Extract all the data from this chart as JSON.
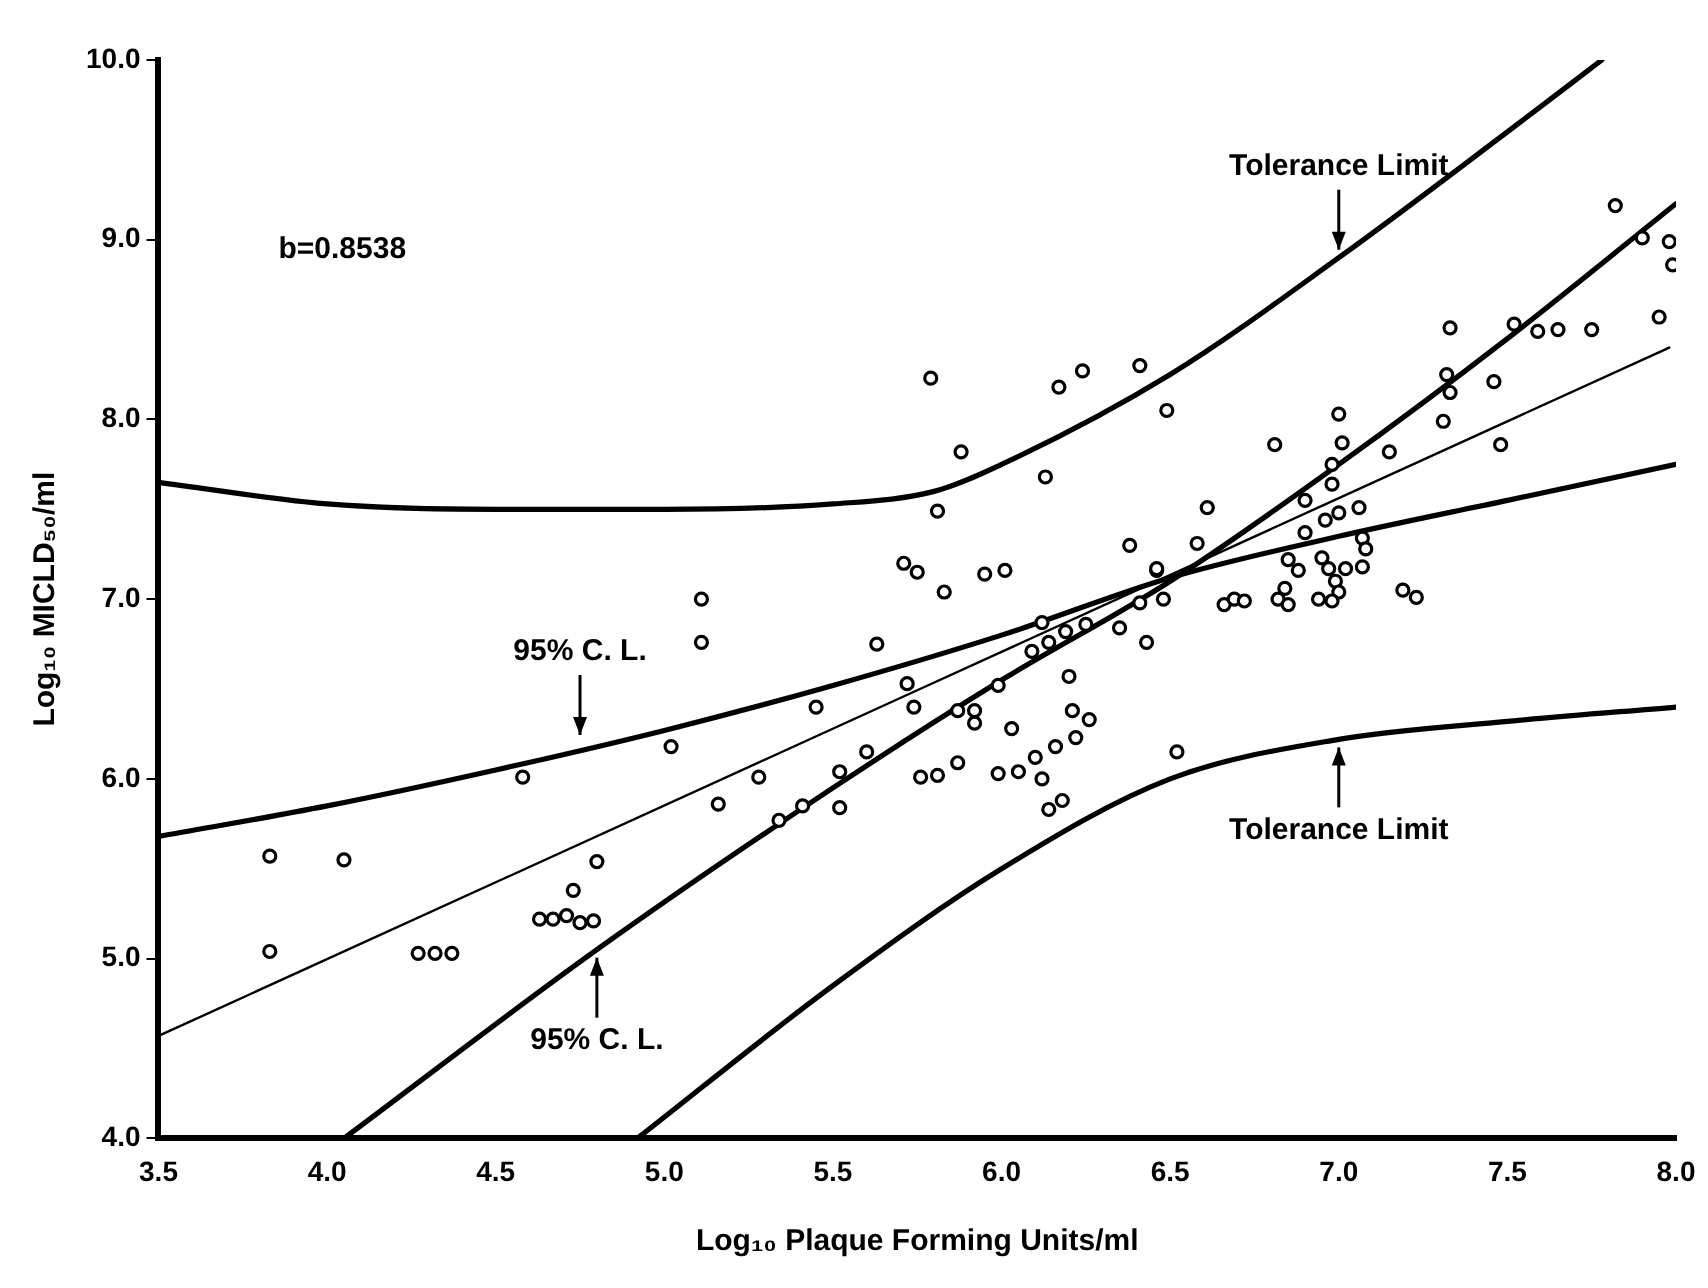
{
  "chart_data": {
    "type": "scatter",
    "xlabel": "Log₁₀ Plaque Forming Units/ml",
    "ylabel": "Log₁₀ MICLD₅₀/ml",
    "xlim": [
      3.5,
      8.0
    ],
    "ylim": [
      4,
      10
    ],
    "xticks": [
      3.5,
      {
        "value": 4,
        "label": "4.0"
      },
      4.5,
      {
        "value": 5,
        "label": "5.0"
      },
      5.5,
      {
        "value": 6,
        "label": "6.0"
      },
      6.5,
      {
        "value": 7,
        "label": "7.0"
      },
      7.5,
      {
        "value": 8,
        "label": "8.0"
      }
    ],
    "yticks": [
      {
        "value": 4,
        "label": "4.0"
      },
      {
        "value": 5,
        "label": "5.0"
      },
      {
        "value": 6,
        "label": "6.0"
      },
      {
        "value": 7,
        "label": "7.0"
      },
      {
        "value": 8,
        "label": "8.0"
      },
      {
        "value": 9,
        "label": "9.0"
      },
      {
        "value": 10,
        "label": "10.0"
      }
    ],
    "grid": false,
    "legend": false,
    "series": [
      {
        "type": "scatter",
        "marker": "circle",
        "color": "#000000",
        "x": [
          3.83,
          4.05,
          4.58,
          5.02,
          3.83,
          4.27,
          4.32,
          4.37,
          4.8,
          4.73,
          4.63,
          4.67,
          4.71,
          4.75,
          4.79,
          5.79,
          6.17,
          6.24,
          6.41,
          6.49,
          5.88,
          6.13,
          5.81,
          6.38,
          5.71,
          5.75,
          5.83,
          5.95,
          6.01,
          6.46,
          5.11,
          5.11,
          5.63,
          6.41,
          6.48,
          6.12,
          6.09,
          6.14,
          6.19,
          6.25,
          6.35,
          6.43,
          5.72,
          5.45,
          5.74,
          5.87,
          5.92,
          5.92,
          5.99,
          6.2,
          6.03,
          6.21,
          6.26,
          6.22,
          6.16,
          6.1,
          5.6,
          5.28,
          5.52,
          5.76,
          5.81,
          5.87,
          5.99,
          6.05,
          6.12,
          6.52,
          5.16,
          5.34,
          5.41,
          5.52,
          6.14,
          6.18,
          7.82,
          7.98,
          7.99,
          7.9,
          7.95,
          7.33,
          7.52,
          7.59,
          7.65,
          7.75,
          7.32,
          7.33,
          7.46,
          7.31,
          7.48,
          7.0,
          6.81,
          7.01,
          7.15,
          6.98,
          6.98,
          6.61,
          6.9,
          6.96,
          7.0,
          7.06,
          6.9,
          6.58,
          6.46,
          7.07,
          7.08,
          6.85,
          6.95,
          6.88,
          6.97,
          7.02,
          7.07,
          6.99,
          7.0,
          6.84,
          7.19,
          7.23,
          6.66,
          6.69,
          6.72,
          6.82,
          6.85,
          6.94,
          6.98
        ],
        "values": [
          5.57,
          5.55,
          6.01,
          6.18,
          5.04,
          5.03,
          5.03,
          5.03,
          5.54,
          5.38,
          5.22,
          5.22,
          5.24,
          5.2,
          5.21,
          8.23,
          8.18,
          8.27,
          8.3,
          8.05,
          7.82,
          7.68,
          7.49,
          7.3,
          7.2,
          7.15,
          7.04,
          7.14,
          7.16,
          7.16,
          7.0,
          6.76,
          6.75,
          6.98,
          7.0,
          6.87,
          6.71,
          6.76,
          6.82,
          6.86,
          6.84,
          6.76,
          6.53,
          6.4,
          6.4,
          6.38,
          6.38,
          6.31,
          6.52,
          6.57,
          6.28,
          6.38,
          6.33,
          6.23,
          6.18,
          6.12,
          6.15,
          6.01,
          6.04,
          6.01,
          6.02,
          6.09,
          6.03,
          6.04,
          6.0,
          6.15,
          5.86,
          5.77,
          5.85,
          5.84,
          5.83,
          5.88,
          9.19,
          8.99,
          8.86,
          9.01,
          8.57,
          8.51,
          8.53,
          8.49,
          8.5,
          8.5,
          8.25,
          8.15,
          8.21,
          7.99,
          7.86,
          8.03,
          7.86,
          7.87,
          7.82,
          7.75,
          7.64,
          7.51,
          7.55,
          7.44,
          7.48,
          7.51,
          7.37,
          7.31,
          7.17,
          7.34,
          7.28,
          7.22,
          7.23,
          7.16,
          7.17,
          7.17,
          7.18,
          7.1,
          7.04,
          7.06,
          7.05,
          7.01,
          6.97,
          7.0,
          6.99,
          7.0,
          6.97,
          7.0,
          6.99
        ]
      },
      {
        "type": "line",
        "marker": "none",
        "line_style": "solid",
        "color": "#000000",
        "x": [
          3.5,
          4.0,
          4.5,
          5.0,
          5.5,
          5.8,
          6.0,
          6.5,
          7.0,
          7.5,
          7.78
        ],
        "values": [
          7.65,
          7.53,
          7.5,
          7.5,
          7.53,
          7.6,
          7.75,
          8.25,
          8.9,
          9.6,
          10.0
        ]
      },
      {
        "type": "line",
        "marker": "none",
        "line_style": "solid",
        "color": "#000000",
        "x": [
          3.5,
          4.0,
          4.5,
          5.0,
          5.5,
          6.0,
          6.5,
          7.0,
          7.5,
          8.0
        ],
        "values": [
          5.68,
          5.85,
          6.05,
          6.27,
          6.52,
          6.8,
          7.12,
          7.35,
          7.55,
          7.75
        ]
      },
      {
        "type": "line",
        "marker": "none",
        "line_style": "solid",
        "color": "#000000",
        "x": [
          3.5,
          7.98
        ],
        "values": [
          4.57,
          8.4
        ]
      },
      {
        "type": "line",
        "marker": "none",
        "line_style": "solid",
        "color": "#000000",
        "x": [
          4.05,
          4.8,
          5.5,
          6.0,
          6.5,
          7.0,
          7.5,
          8.0
        ],
        "values": [
          4.0,
          5.05,
          5.95,
          6.55,
          7.1,
          7.75,
          8.45,
          9.2
        ]
      },
      {
        "type": "line",
        "marker": "none",
        "line_style": "solid",
        "color": "#000000",
        "x": [
          4.92,
          5.5,
          6.0,
          6.5,
          7.0,
          7.5,
          8.0
        ],
        "values": [
          4.0,
          4.85,
          5.5,
          6.0,
          6.22,
          6.32,
          6.4
        ]
      }
    ],
    "annotations": [
      {
        "text": "Tolerance Limit",
        "x": 7.0,
        "y": 8.9
      },
      {
        "text": "Tolerance Limit",
        "x": 7.0,
        "y": 6.22
      },
      {
        "text": "95% C. L.",
        "x": 4.75,
        "y": 6.2
      },
      {
        "text": "95% C. L.",
        "x": 4.8,
        "y": 5.05
      },
      "b=0.8538"
    ]
  }
}
